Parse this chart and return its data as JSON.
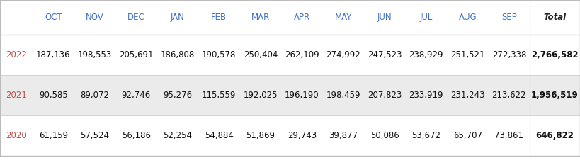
{
  "columns": [
    "",
    "OCT",
    "NOV",
    "DEC",
    "JAN",
    "FEB",
    "MAR",
    "APR",
    "MAY",
    "JUN",
    "JUL",
    "AUG",
    "SEP",
    "Total"
  ],
  "rows": [
    {
      "year": "2022",
      "values": [
        "187,136",
        "198,553",
        "205,691",
        "186,808",
        "190,578",
        "250,404",
        "262,109",
        "274,992",
        "247,523",
        "238,929",
        "251,521",
        "272,338",
        "2,766,582"
      ],
      "bg_color": "#ffffff",
      "year_color": "#c0504d"
    },
    {
      "year": "2021",
      "values": [
        "90,585",
        "89,072",
        "92,746",
        "95,276",
        "115,559",
        "192,025",
        "196,190",
        "198,459",
        "207,823",
        "233,919",
        "231,243",
        "213,622",
        "1,956,519"
      ],
      "bg_color": "#ebebeb",
      "year_color": "#c0504d"
    },
    {
      "year": "2020",
      "values": [
        "61,159",
        "57,524",
        "56,186",
        "52,254",
        "54,884",
        "51,869",
        "29,743",
        "39,877",
        "50,086",
        "53,672",
        "65,707",
        "73,861",
        "646,822"
      ],
      "bg_color": "#ffffff",
      "year_color": "#c0504d"
    }
  ],
  "header_color": "#4472c4",
  "outer_border_color": "#bbbbbb",
  "divider_color": "#cccccc",
  "font_size": 8.5,
  "header_font_size": 8.5,
  "figsize": [
    8.19,
    2.33
  ],
  "dpi": 100
}
